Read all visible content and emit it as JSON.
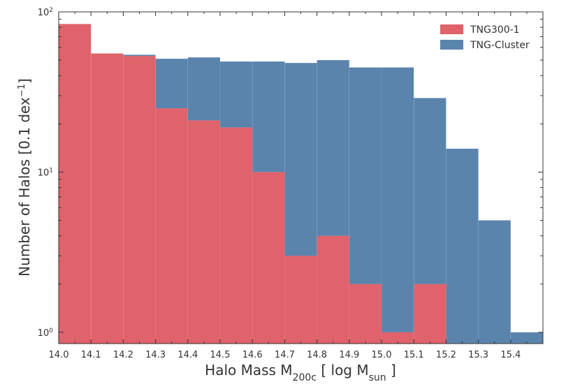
{
  "chart_data": {
    "type": "bar",
    "xlabel": "Halo Mass M",
    "xlabel_sub": "200c",
    "xlabel_unit_open": " [ log M",
    "xlabel_unit_sub": "sun",
    "xlabel_unit_close": " ]",
    "ylabel": "Number of Halos [0.1 dex",
    "ylabel_sup": "−1",
    "ylabel_close": "]",
    "yscale": "log",
    "ylim": [
      0.85,
      100
    ],
    "xlim": [
      14.0,
      15.5
    ],
    "bin_width": 0.1,
    "legend_position": "top-right",
    "x_ticks": [
      "14.0",
      "14.1",
      "14.2",
      "14.3",
      "14.4",
      "14.5",
      "14.6",
      "14.7",
      "14.8",
      "14.9",
      "15.0",
      "15.1",
      "15.2",
      "15.3",
      "15.4"
    ],
    "y_ticks": [
      {
        "value": 1,
        "base": "10",
        "exp": "0"
      },
      {
        "value": 10,
        "base": "10",
        "exp": "1"
      },
      {
        "value": 100,
        "base": "10",
        "exp": "2"
      }
    ],
    "series": [
      {
        "name": "TNG-Cluster",
        "color": "#5b84ad",
        "bin_edges": [
          14.2,
          14.3,
          14.4,
          14.5,
          14.6,
          14.7,
          14.8,
          14.9,
          15.0,
          15.1,
          15.2,
          15.3,
          15.4
        ],
        "values": [
          54,
          51,
          52,
          49,
          49,
          48,
          50,
          45,
          45,
          29,
          14,
          5,
          1
        ]
      },
      {
        "name": "TNG300-1",
        "color": "#e0626a",
        "bin_edges": [
          14.0,
          14.1,
          14.2,
          14.3,
          14.4,
          14.5,
          14.6,
          14.7,
          14.8,
          14.9,
          15.0,
          15.1
        ],
        "values": [
          84,
          55,
          53,
          25,
          21,
          19,
          10,
          3,
          4,
          2,
          1,
          2
        ]
      }
    ]
  }
}
